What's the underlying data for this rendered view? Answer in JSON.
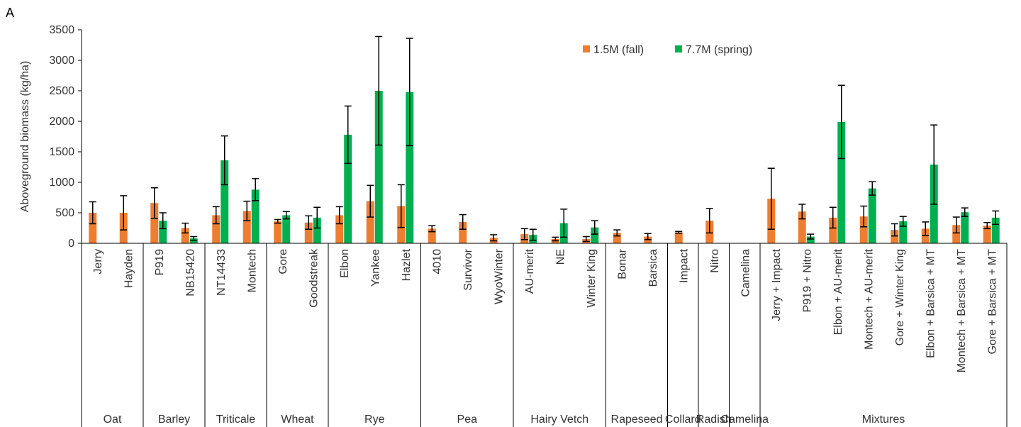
{
  "panel_label": "A",
  "chart_data": {
    "type": "bar",
    "ylabel": "Aboveground biomass  (kg/ha)",
    "ylim": [
      0,
      3500
    ],
    "yticks": [
      0,
      500,
      1000,
      1500,
      2000,
      2500,
      3000,
      3500
    ],
    "grid": false,
    "legend_position": "top-right",
    "series": [
      {
        "name": "1.5M (fall)",
        "color": "#ED7D31"
      },
      {
        "name": "7.7M (spring)",
        "color": "#00B050"
      }
    ],
    "groups": [
      {
        "name": "Oat",
        "items": [
          {
            "label": "Jerry",
            "fall": 500,
            "fall_err": 180,
            "spring": null,
            "spring_err": null
          },
          {
            "label": "Hayden",
            "fall": 500,
            "fall_err": 280,
            "spring": null,
            "spring_err": null
          }
        ]
      },
      {
        "name": "Barley",
        "items": [
          {
            "label": "P919",
            "fall": 660,
            "fall_err": 250,
            "spring": 370,
            "spring_err": 130
          },
          {
            "label": "NB15420",
            "fall": 250,
            "fall_err": 80,
            "spring": 80,
            "spring_err": 30
          }
        ]
      },
      {
        "name": "Triticale",
        "items": [
          {
            "label": "NT14433",
            "fall": 460,
            "fall_err": 140,
            "spring": 1360,
            "spring_err": 400
          },
          {
            "label": "Montech",
            "fall": 530,
            "fall_err": 160,
            "spring": 880,
            "spring_err": 180
          }
        ]
      },
      {
        "name": "Wheat",
        "items": [
          {
            "label": "Gore",
            "fall": 360,
            "fall_err": 30,
            "spring": 460,
            "spring_err": 60
          },
          {
            "label": "Goodstreak",
            "fall": 340,
            "fall_err": 110,
            "spring": 420,
            "spring_err": 170
          }
        ]
      },
      {
        "name": "Rye",
        "items": [
          {
            "label": "Elbon",
            "fall": 460,
            "fall_err": 140,
            "spring": 1780,
            "spring_err": 470
          },
          {
            "label": "Yankee",
            "fall": 690,
            "fall_err": 260,
            "spring": 2500,
            "spring_err": 890
          },
          {
            "label": "Hazlet",
            "fall": 610,
            "fall_err": 350,
            "spring": 2480,
            "spring_err": 880
          }
        ]
      },
      {
        "name": "Pea",
        "items": [
          {
            "label": "4010",
            "fall": 240,
            "fall_err": 50,
            "spring": null,
            "spring_err": null
          },
          {
            "label": "Survivor",
            "fall": 350,
            "fall_err": 120,
            "spring": null,
            "spring_err": null
          },
          {
            "label": "WyoWinter",
            "fall": 90,
            "fall_err": 50,
            "spring": null,
            "spring_err": null
          }
        ]
      },
      {
        "name": "Hairy Vetch",
        "items": [
          {
            "label": "AU-merit",
            "fall": 150,
            "fall_err": 90,
            "spring": 140,
            "spring_err": 90
          },
          {
            "label": "NE",
            "fall": 70,
            "fall_err": 30,
            "spring": 330,
            "spring_err": 230
          },
          {
            "label": "Winter King",
            "fall": 70,
            "fall_err": 40,
            "spring": 260,
            "spring_err": 110
          }
        ]
      },
      {
        "name": "Rapeseed",
        "items": [
          {
            "label": "Bonar",
            "fall": 170,
            "fall_err": 50,
            "spring": null,
            "spring_err": null
          },
          {
            "label": "Barsica",
            "fall": 110,
            "fall_err": 50,
            "spring": null,
            "spring_err": null
          }
        ]
      },
      {
        "name": "Collard",
        "items": [
          {
            "label": "Impact",
            "fall": 180,
            "fall_err": 15,
            "spring": null,
            "spring_err": null
          }
        ]
      },
      {
        "name": "Radish",
        "items": [
          {
            "label": "Nitro",
            "fall": 370,
            "fall_err": 200,
            "spring": null,
            "spring_err": null
          }
        ]
      },
      {
        "name": "Camelina",
        "items": [
          {
            "label": "Camelina",
            "fall": null,
            "fall_err": null,
            "spring": null,
            "spring_err": null
          }
        ]
      },
      {
        "name": "Mixtures",
        "items": [
          {
            "label": "Jerry + Impact",
            "fall": 730,
            "fall_err": 500,
            "spring": null,
            "spring_err": null
          },
          {
            "label": "P919 + Nitro",
            "fall": 520,
            "fall_err": 120,
            "spring": 110,
            "spring_err": 40
          },
          {
            "label": "Elbon + AU-merit",
            "fall": 420,
            "fall_err": 170,
            "spring": 1990,
            "spring_err": 600
          },
          {
            "label": "Montech + AU-merit",
            "fall": 440,
            "fall_err": 170,
            "spring": 900,
            "spring_err": 110
          },
          {
            "label": "Gore + Winter King",
            "fall": 220,
            "fall_err": 100,
            "spring": 360,
            "spring_err": 80
          },
          {
            "label": "Elbon + Barsica + MT",
            "fall": 240,
            "fall_err": 110,
            "spring": 1290,
            "spring_err": 650
          },
          {
            "label": "Montech + Barsica + MT",
            "fall": 300,
            "fall_err": 130,
            "spring": 510,
            "spring_err": 70
          },
          {
            "label": "Gore + Barsica + MT",
            "fall": 290,
            "fall_err": 50,
            "spring": 420,
            "spring_err": 110
          }
        ]
      }
    ]
  }
}
